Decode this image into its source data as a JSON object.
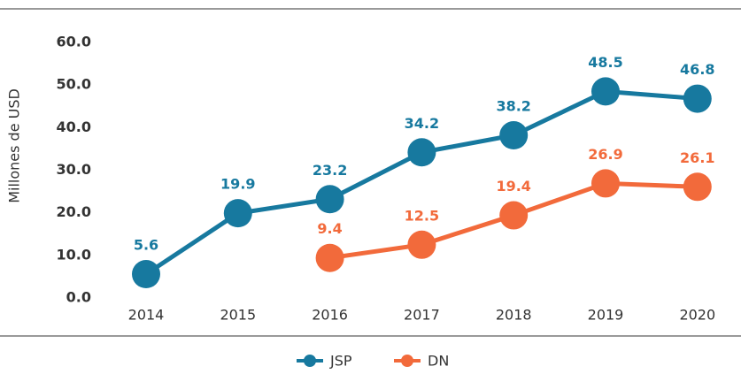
{
  "chart_data": {
    "type": "line",
    "y_label": "Millones de USD",
    "categories": [
      "2014",
      "2015",
      "2016",
      "2017",
      "2018",
      "2019",
      "2020"
    ],
    "series": [
      {
        "name": "JSP",
        "color": "#17799f",
        "values": [
          5.6,
          19.9,
          23.2,
          34.2,
          38.2,
          48.5,
          46.8
        ]
      },
      {
        "name": "DN",
        "color": "#f26a3b",
        "values": [
          null,
          null,
          9.4,
          12.5,
          19.4,
          26.9,
          26.1
        ]
      }
    ],
    "ylim": [
      0,
      60
    ],
    "yticks": [
      {
        "value": 0,
        "label": "0.0"
      },
      {
        "value": 10,
        "label": "10.0"
      },
      {
        "value": 20,
        "label": "20.0"
      },
      {
        "value": 30,
        "label": "30.0"
      },
      {
        "value": 40,
        "label": "40.0"
      },
      {
        "value": 50,
        "label": "50.0"
      },
      {
        "value": 60,
        "label": "60.0"
      }
    ],
    "legend": "bottom"
  }
}
